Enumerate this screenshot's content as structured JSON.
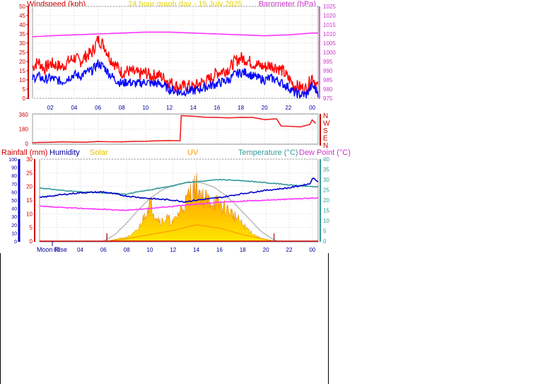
{
  "header": {
    "left_label": "Windspeed (kph)",
    "center_title": "24 hour graph day - 15 July 2025",
    "right_label": "Barometer (hPa)"
  },
  "colors": {
    "wind": "#ff0000",
    "gust": "#0000ff",
    "barometer": "#ff33ff",
    "bearing": "#ee2222",
    "humidity": "#0000cc",
    "solar": "#ffcc00",
    "uv": "#ff9900",
    "temperature": "#339999",
    "dewpoint": "#ff33ff",
    "rain": "#cc0000",
    "max_solar": "#bbbbbb",
    "axis_blue": "#000099",
    "axis_green": "#339999"
  },
  "chart_data": [
    {
      "type": "line",
      "panel": "wind-barometer",
      "x_ticks": [
        "02",
        "04",
        "06",
        "08",
        "10",
        "12",
        "14",
        "16",
        "18",
        "20",
        "22",
        "00"
      ],
      "hour_range": [
        0.5,
        24.5
      ],
      "left_axis": {
        "label": "Windspeed (kph)",
        "ylim": [
          0,
          50
        ],
        "ticks": [
          0,
          5,
          10,
          15,
          20,
          25,
          30,
          35,
          40,
          45,
          50
        ]
      },
      "right_axis": {
        "label": "Barometer (hPa)",
        "ylim": [
          975,
          1025
        ],
        "ticks": [
          975,
          980,
          985,
          990,
          995,
          1000,
          1005,
          1010,
          1015,
          1020,
          1025
        ]
      },
      "series": [
        {
          "name": "Windspeed",
          "axis": "left",
          "x": [
            0.5,
            1,
            1.5,
            2,
            2.5,
            3,
            3.5,
            4,
            4.5,
            5,
            5.5,
            6,
            6.5,
            7,
            7.5,
            8,
            8.5,
            9,
            9.5,
            10,
            10.5,
            11,
            11.5,
            12,
            12.5,
            13,
            13.5,
            14,
            14.5,
            15,
            15.5,
            16,
            16.5,
            17,
            17.5,
            18,
            18.5,
            19,
            19.5,
            20,
            20.5,
            21,
            21.5,
            22,
            22.5,
            23,
            23.5,
            24,
            24.5
          ],
          "y": [
            17,
            20,
            16,
            19,
            18,
            17,
            20,
            22,
            20,
            23,
            25,
            32,
            29,
            22,
            18,
            14,
            15,
            14,
            13,
            14,
            12,
            13,
            11,
            9,
            7,
            6,
            7,
            6,
            8,
            9,
            11,
            14,
            15,
            16,
            20,
            22,
            21,
            19,
            18,
            17,
            18,
            17,
            15,
            11,
            7,
            6,
            5,
            12,
            6
          ]
        },
        {
          "name": "Gust",
          "axis": "left",
          "x": [
            0.5,
            1,
            1.5,
            2,
            2.5,
            3,
            3.5,
            4,
            4.5,
            5,
            5.5,
            6,
            6.5,
            7,
            7.5,
            8,
            8.5,
            9,
            9.5,
            10,
            10.5,
            11,
            11.5,
            12,
            12.5,
            13,
            13.5,
            14,
            14.5,
            15,
            15.5,
            16,
            16.5,
            17,
            17.5,
            18,
            18.5,
            19,
            19.5,
            20,
            20.5,
            21,
            21.5,
            22,
            22.5,
            23,
            23.5,
            24,
            24.5
          ],
          "y": [
            11,
            12,
            10,
            11,
            10,
            9,
            11,
            13,
            12,
            14,
            15,
            19,
            17,
            13,
            10,
            8,
            9,
            8,
            8,
            9,
            8,
            8,
            7,
            5,
            4,
            3,
            4,
            4,
            5,
            6,
            7,
            8,
            9,
            10,
            13,
            14,
            14,
            12,
            11,
            10,
            11,
            10,
            8,
            6,
            3,
            2,
            2,
            7,
            3
          ]
        },
        {
          "name": "Barometer",
          "axis": "right",
          "x": [
            0.5,
            2,
            4,
            6,
            8,
            10,
            12,
            14,
            16,
            18,
            20,
            22,
            23,
            24,
            24.5
          ],
          "y": [
            1008.5,
            1009,
            1009.5,
            1010,
            1010.5,
            1011,
            1011,
            1010.5,
            1010,
            1009.5,
            1009,
            1009.5,
            1010,
            1010.5,
            1010.5
          ]
        }
      ]
    },
    {
      "type": "line",
      "panel": "wind-direction",
      "y_ticks": [
        0,
        180,
        360
      ],
      "compass_labels": [
        "N",
        "W",
        "S",
        "E",
        "N"
      ],
      "ylim": [
        0,
        360
      ],
      "series": [
        {
          "name": "Wind direction",
          "x": [
            0.5,
            1,
            2,
            3,
            4,
            5,
            6,
            7,
            8,
            9,
            10,
            11,
            12,
            12.9,
            13,
            14,
            15,
            16,
            17,
            18,
            19,
            20,
            21,
            21.4,
            22,
            23,
            23.8,
            24,
            24.3
          ],
          "y": [
            10,
            12,
            15,
            18,
            18,
            20,
            22,
            24,
            25,
            28,
            30,
            32,
            35,
            38,
            345,
            338,
            330,
            325,
            320,
            325,
            320,
            300,
            310,
            220,
            215,
            210,
            240,
            290,
            250
          ]
        }
      ]
    },
    {
      "type": "area",
      "panel": "solar-temperature",
      "x_ticks": [
        "02",
        "04",
        "06",
        "08",
        "10",
        "12",
        "14",
        "16",
        "18",
        "20",
        "22",
        "00"
      ],
      "hour_range": [
        0.5,
        24.5
      ],
      "legend": [
        "Rainfall (mm)",
        "Humidity",
        "Solar",
        "UV",
        "Temperature (°C)",
        "Dew Point (°C)"
      ],
      "axes": {
        "humidity": {
          "ylim": [
            0,
            100
          ],
          "ticks": [
            0,
            5,
            10,
            15,
            20,
            25,
            30,
            35,
            40,
            45,
            50,
            55,
            60,
            65,
            70,
            75,
            80,
            85,
            90,
            95,
            100
          ]
        },
        "rain": {
          "ylim": [
            0,
            30
          ],
          "ticks": [
            0,
            5,
            10,
            15,
            20,
            25,
            30
          ]
        },
        "temperature": {
          "ylim": [
            0,
            40
          ],
          "ticks": [
            0,
            5,
            10,
            15,
            20,
            25,
            30,
            35,
            40
          ]
        }
      },
      "moon_label": "Moon Rise",
      "moon_rise_hour": 1.6,
      "sun_markers_hours": [
        6.3,
        20.7
      ],
      "series": [
        {
          "name": "Humidity",
          "axis": "humidity",
          "x": [
            0.5,
            2,
            4,
            6,
            8,
            10,
            12,
            13,
            14,
            16,
            18,
            20,
            22,
            23.8,
            24,
            24.5
          ],
          "y": [
            53,
            56,
            59,
            60,
            55,
            52,
            50,
            48,
            50,
            53,
            58,
            62,
            65,
            70,
            77,
            73
          ]
        },
        {
          "name": "Temperature",
          "axis": "temperature",
          "x": [
            0.5,
            2,
            4,
            6,
            8,
            10,
            12,
            13,
            14,
            16,
            18,
            20,
            22,
            23,
            24,
            24.5
          ],
          "y": [
            26,
            25,
            24,
            23.5,
            23,
            25,
            27,
            28.5,
            29,
            30,
            29.5,
            28.5,
            27.5,
            27,
            26.5,
            26.5
          ]
        },
        {
          "name": "Dew Point",
          "axis": "temperature",
          "x": [
            0.5,
            2,
            4,
            6,
            8,
            10,
            12,
            14,
            16,
            18,
            20,
            22,
            24,
            24.5
          ],
          "y": [
            17,
            16.5,
            16,
            15.5,
            15,
            16,
            17,
            18,
            19,
            19.5,
            20,
            20.5,
            21,
            21
          ]
        },
        {
          "name": "Solar",
          "axis": "humidity",
          "x": [
            6.3,
            7,
            8,
            8.5,
            9,
            9.5,
            10,
            10.5,
            11,
            11.5,
            12,
            12.5,
            13,
            13.5,
            14,
            14.5,
            15,
            15.5,
            16,
            16.5,
            17,
            17.5,
            18,
            18.5,
            19,
            19.5,
            20,
            20.7
          ],
          "y": [
            0,
            2,
            5,
            8,
            14,
            30,
            48,
            32,
            24,
            28,
            22,
            35,
            45,
            60,
            68,
            55,
            50,
            48,
            45,
            40,
            35,
            28,
            20,
            14,
            8,
            4,
            2,
            0
          ]
        },
        {
          "name": "UV",
          "axis": "humidity",
          "x": [
            6.3,
            8,
            10,
            12,
            14,
            16,
            18,
            20.7
          ],
          "y": [
            0,
            3,
            8,
            13,
            20,
            16,
            8,
            0
          ]
        },
        {
          "name": "Max solar",
          "axis": "humidity",
          "x": [
            6,
            7,
            8,
            9,
            10,
            11,
            12,
            13,
            13.8,
            14.5,
            15.5,
            16.5,
            17.5,
            18.5,
            19.5,
            20.5,
            21
          ],
          "y": [
            0,
            8,
            22,
            38,
            52,
            62,
            68,
            71,
            72,
            71,
            66,
            56,
            43,
            28,
            13,
            3,
            0
          ]
        },
        {
          "name": "Rainfall",
          "axis": "rain",
          "x": [
            0.5,
            24.5
          ],
          "y": [
            0,
            0
          ]
        }
      ]
    }
  ]
}
